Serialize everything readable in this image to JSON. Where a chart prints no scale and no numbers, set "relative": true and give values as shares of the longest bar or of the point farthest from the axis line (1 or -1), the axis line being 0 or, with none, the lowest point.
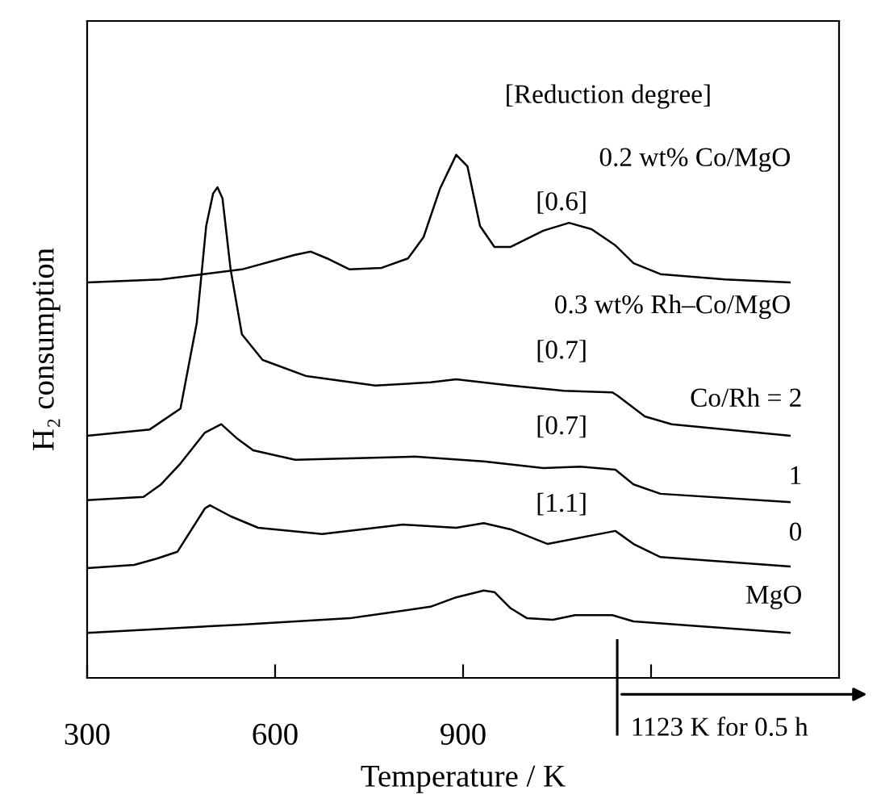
{
  "chart_data": {
    "type": "line",
    "relative": true,
    "xlabel": "Temperature / K",
    "ylabel": "H₂ consumption",
    "xlim": [
      300,
      1500
    ],
    "xticks": [
      300,
      600,
      900,
      {
        "value": 1200,
        "label": null
      }
    ],
    "tick_labels": "x",
    "legend": false,
    "marker": "none",
    "line_style": "solid",
    "series": [
      {
        "name": "0.2 wt% Co/MgO",
        "color": "#000000",
        "x": [
          300,
          418,
          547,
          632,
          657,
          683,
          719,
          770,
          812,
          837,
          863,
          889,
          907,
          927,
          950,
          976,
          1028,
          1069,
          1105,
          1143,
          1172,
          1215,
          1318,
          1421
        ],
        "values": [
          0.756,
          0.762,
          0.781,
          0.809,
          0.815,
          0.802,
          0.781,
          0.784,
          0.802,
          0.843,
          0.935,
          1.0,
          0.978,
          0.864,
          0.824,
          0.824,
          0.855,
          0.87,
          0.858,
          0.827,
          0.793,
          0.772,
          0.762,
          0.756
        ]
      },
      {
        "name": "Co/Rh = 2",
        "color": "#000000",
        "x": [
          300,
          400,
          449,
          475,
          490,
          501,
          508,
          516,
          529,
          547,
          580,
          650,
          760,
          848,
          889,
          976,
          1061,
          1138,
          1146,
          1190,
          1233,
          1421
        ],
        "values": [
          0.463,
          0.475,
          0.515,
          0.679,
          0.864,
          0.926,
          0.938,
          0.917,
          0.781,
          0.657,
          0.608,
          0.577,
          0.559,
          0.565,
          0.571,
          0.559,
          0.549,
          0.546,
          0.54,
          0.5,
          0.485,
          0.463
        ]
      },
      {
        "name": "1",
        "color": "#000000",
        "x": [
          300,
          390,
          418,
          449,
          488,
          514,
          540,
          565,
          632,
          822,
          933,
          1028,
          1087,
          1143,
          1172,
          1215,
          1421
        ],
        "values": [
          0.34,
          0.346,
          0.37,
          0.41,
          0.469,
          0.485,
          0.457,
          0.435,
          0.417,
          0.423,
          0.414,
          0.401,
          0.404,
          0.398,
          0.37,
          0.352,
          0.336
        ]
      },
      {
        "name": "0",
        "color": "#000000",
        "x": [
          300,
          375,
          411,
          444,
          488,
          496,
          529,
          573,
          675,
          804,
          889,
          933,
          976,
          1035,
          1143,
          1172,
          1215,
          1421
        ],
        "values": [
          0.21,
          0.216,
          0.228,
          0.241,
          0.324,
          0.33,
          0.309,
          0.287,
          0.275,
          0.293,
          0.287,
          0.296,
          0.284,
          0.256,
          0.281,
          0.256,
          0.231,
          0.213
        ]
      },
      {
        "name": "MgO",
        "color": "#000000",
        "x": [
          300,
          547,
          719,
          848,
          889,
          933,
          950,
          976,
          1002,
          1043,
          1079,
          1138,
          1172,
          1421
        ],
        "values": [
          0.086,
          0.102,
          0.114,
          0.136,
          0.154,
          0.167,
          0.164,
          0.133,
          0.114,
          0.111,
          0.12,
          0.12,
          0.108,
          0.086
        ]
      }
    ],
    "annotations": [
      "[Reduction degree]",
      "0.3 wt% Rh–Co/MgO",
      "[0.6]",
      "[0.7]",
      "[0.7]",
      "[1.1]"
    ],
    "ref_lines": [
      {
        "axis": "x",
        "value": 1146,
        "label": "1123 K for 0.5 h",
        "color": "#000000",
        "line_style": "solid"
      }
    ]
  }
}
